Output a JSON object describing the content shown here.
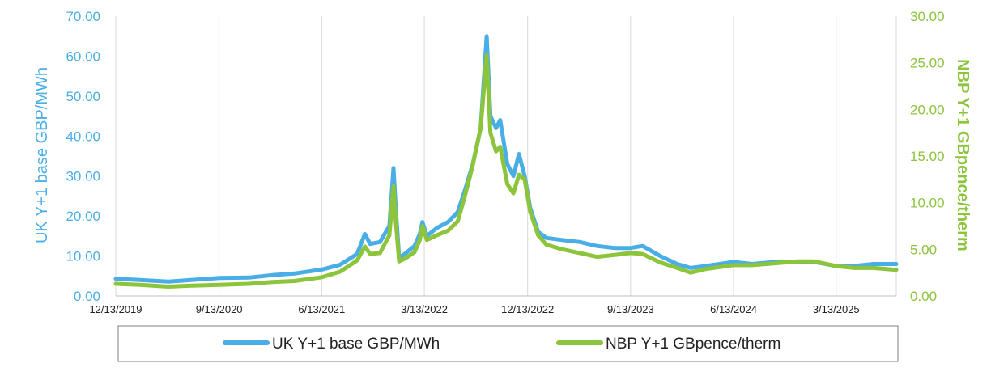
{
  "chart_data": {
    "type": "line",
    "xlabel": "",
    "x_ticks": [
      "12/13/2019",
      "9/13/2020",
      "6/13/2021",
      "3/13/2022",
      "12/13/2022",
      "9/13/2023",
      "6/13/2024",
      "3/13/2025"
    ],
    "x_range": [
      "2019-12-13",
      "2025-08-20"
    ],
    "y_left": {
      "label": "UK Y+1 base GBP/MWh",
      "ylim": [
        0,
        70
      ],
      "ticks": [
        "0.00",
        "10.00",
        "20.00",
        "30.00",
        "40.00",
        "50.00",
        "60.00",
        "70.00"
      ],
      "color": "#4aaee6"
    },
    "y_right": {
      "label": "NBP Y+1 GBpence/therm",
      "ylim": [
        0,
        30
      ],
      "ticks": [
        "0.00",
        "5.00",
        "10.00",
        "15.00",
        "20.00",
        "25.00",
        "30.00"
      ],
      "color": "#8cc43c"
    },
    "grid": "vertical",
    "legend_position": "bottom",
    "series": [
      {
        "name": "UK Y+1 base GBP/MWh",
        "axis": "left",
        "color": "#4aaee6",
        "points": [
          [
            "2019-12-13",
            4.3
          ],
          [
            "2020-02-15",
            4.0
          ],
          [
            "2020-05-01",
            3.6
          ],
          [
            "2020-07-01",
            4.0
          ],
          [
            "2020-09-13",
            4.5
          ],
          [
            "2020-12-01",
            4.6
          ],
          [
            "2021-02-01",
            5.2
          ],
          [
            "2021-04-01",
            5.6
          ],
          [
            "2021-06-13",
            6.6
          ],
          [
            "2021-08-01",
            7.8
          ],
          [
            "2021-09-15",
            10.5
          ],
          [
            "2021-10-06",
            15.5
          ],
          [
            "2021-10-20",
            13.0
          ],
          [
            "2021-11-15",
            13.5
          ],
          [
            "2021-12-10",
            17.5
          ],
          [
            "2021-12-21",
            32.0
          ],
          [
            "2021-12-27",
            22.0
          ],
          [
            "2022-01-05",
            9.5
          ],
          [
            "2022-01-20",
            10.5
          ],
          [
            "2022-02-15",
            12.5
          ],
          [
            "2022-03-01",
            15.5
          ],
          [
            "2022-03-08",
            18.5
          ],
          [
            "2022-03-20",
            15.0
          ],
          [
            "2022-04-15",
            17.0
          ],
          [
            "2022-05-15",
            18.5
          ],
          [
            "2022-06-10",
            21.0
          ],
          [
            "2022-07-01",
            27.0
          ],
          [
            "2022-07-20",
            33.0
          ],
          [
            "2022-08-10",
            42.0
          ],
          [
            "2022-08-26",
            65.0
          ],
          [
            "2022-09-05",
            45.0
          ],
          [
            "2022-09-20",
            42.0
          ],
          [
            "2022-10-01",
            44.0
          ],
          [
            "2022-10-20",
            33.0
          ],
          [
            "2022-11-05",
            30.0
          ],
          [
            "2022-11-20",
            35.5
          ],
          [
            "2022-12-05",
            30.0
          ],
          [
            "2022-12-20",
            22.0
          ],
          [
            "2023-01-10",
            16.0
          ],
          [
            "2023-02-01",
            14.5
          ],
          [
            "2023-03-15",
            14.0
          ],
          [
            "2023-05-01",
            13.5
          ],
          [
            "2023-06-15",
            12.5
          ],
          [
            "2023-08-01",
            12.0
          ],
          [
            "2023-09-13",
            12.0
          ],
          [
            "2023-10-15",
            12.5
          ],
          [
            "2023-12-01",
            10.0
          ],
          [
            "2024-01-15",
            8.0
          ],
          [
            "2024-02-20",
            7.0
          ],
          [
            "2024-04-01",
            7.5
          ],
          [
            "2024-06-13",
            8.5
          ],
          [
            "2024-08-01",
            8.0
          ],
          [
            "2024-10-01",
            8.5
          ],
          [
            "2024-12-01",
            8.5
          ],
          [
            "2025-01-15",
            8.5
          ],
          [
            "2025-03-13",
            7.5
          ],
          [
            "2025-05-01",
            7.5
          ],
          [
            "2025-06-20",
            8.0
          ],
          [
            "2025-08-20",
            8.0
          ]
        ]
      },
      {
        "name": "NBP Y+1 GBpence/therm",
        "axis": "right",
        "color": "#8cc43c",
        "points": [
          [
            "2019-12-13",
            1.3
          ],
          [
            "2020-02-15",
            1.2
          ],
          [
            "2020-05-01",
            1.0
          ],
          [
            "2020-07-01",
            1.1
          ],
          [
            "2020-09-13",
            1.2
          ],
          [
            "2020-12-01",
            1.3
          ],
          [
            "2021-02-01",
            1.5
          ],
          [
            "2021-04-01",
            1.6
          ],
          [
            "2021-06-13",
            2.0
          ],
          [
            "2021-08-01",
            2.6
          ],
          [
            "2021-09-15",
            3.8
          ],
          [
            "2021-10-06",
            5.3
          ],
          [
            "2021-10-20",
            4.5
          ],
          [
            "2021-11-15",
            4.6
          ],
          [
            "2021-12-10",
            6.5
          ],
          [
            "2021-12-21",
            11.8
          ],
          [
            "2021-12-27",
            8.0
          ],
          [
            "2022-01-05",
            3.7
          ],
          [
            "2022-01-20",
            4.0
          ],
          [
            "2022-02-15",
            4.7
          ],
          [
            "2022-03-01",
            6.0
          ],
          [
            "2022-03-08",
            7.5
          ],
          [
            "2022-03-20",
            6.0
          ],
          [
            "2022-04-15",
            6.5
          ],
          [
            "2022-05-15",
            7.0
          ],
          [
            "2022-06-10",
            8.0
          ],
          [
            "2022-07-01",
            11.0
          ],
          [
            "2022-07-20",
            14.0
          ],
          [
            "2022-08-10",
            18.0
          ],
          [
            "2022-08-26",
            25.8
          ],
          [
            "2022-09-05",
            17.5
          ],
          [
            "2022-09-20",
            15.5
          ],
          [
            "2022-10-01",
            16.0
          ],
          [
            "2022-10-20",
            12.0
          ],
          [
            "2022-11-05",
            11.0
          ],
          [
            "2022-11-20",
            13.0
          ],
          [
            "2022-12-05",
            12.5
          ],
          [
            "2022-12-20",
            9.0
          ],
          [
            "2023-01-10",
            6.5
          ],
          [
            "2023-02-01",
            5.5
          ],
          [
            "2023-03-15",
            5.0
          ],
          [
            "2023-05-01",
            4.6
          ],
          [
            "2023-06-15",
            4.2
          ],
          [
            "2023-08-01",
            4.4
          ],
          [
            "2023-09-13",
            4.6
          ],
          [
            "2023-10-15",
            4.5
          ],
          [
            "2023-12-01",
            3.6
          ],
          [
            "2024-01-15",
            3.0
          ],
          [
            "2024-02-20",
            2.5
          ],
          [
            "2024-04-01",
            2.9
          ],
          [
            "2024-06-13",
            3.3
          ],
          [
            "2024-08-01",
            3.3
          ],
          [
            "2024-10-01",
            3.5
          ],
          [
            "2024-12-01",
            3.7
          ],
          [
            "2025-01-15",
            3.7
          ],
          [
            "2025-03-13",
            3.2
          ],
          [
            "2025-05-01",
            3.0
          ],
          [
            "2025-06-20",
            3.0
          ],
          [
            "2025-08-20",
            2.8
          ]
        ]
      }
    ]
  }
}
